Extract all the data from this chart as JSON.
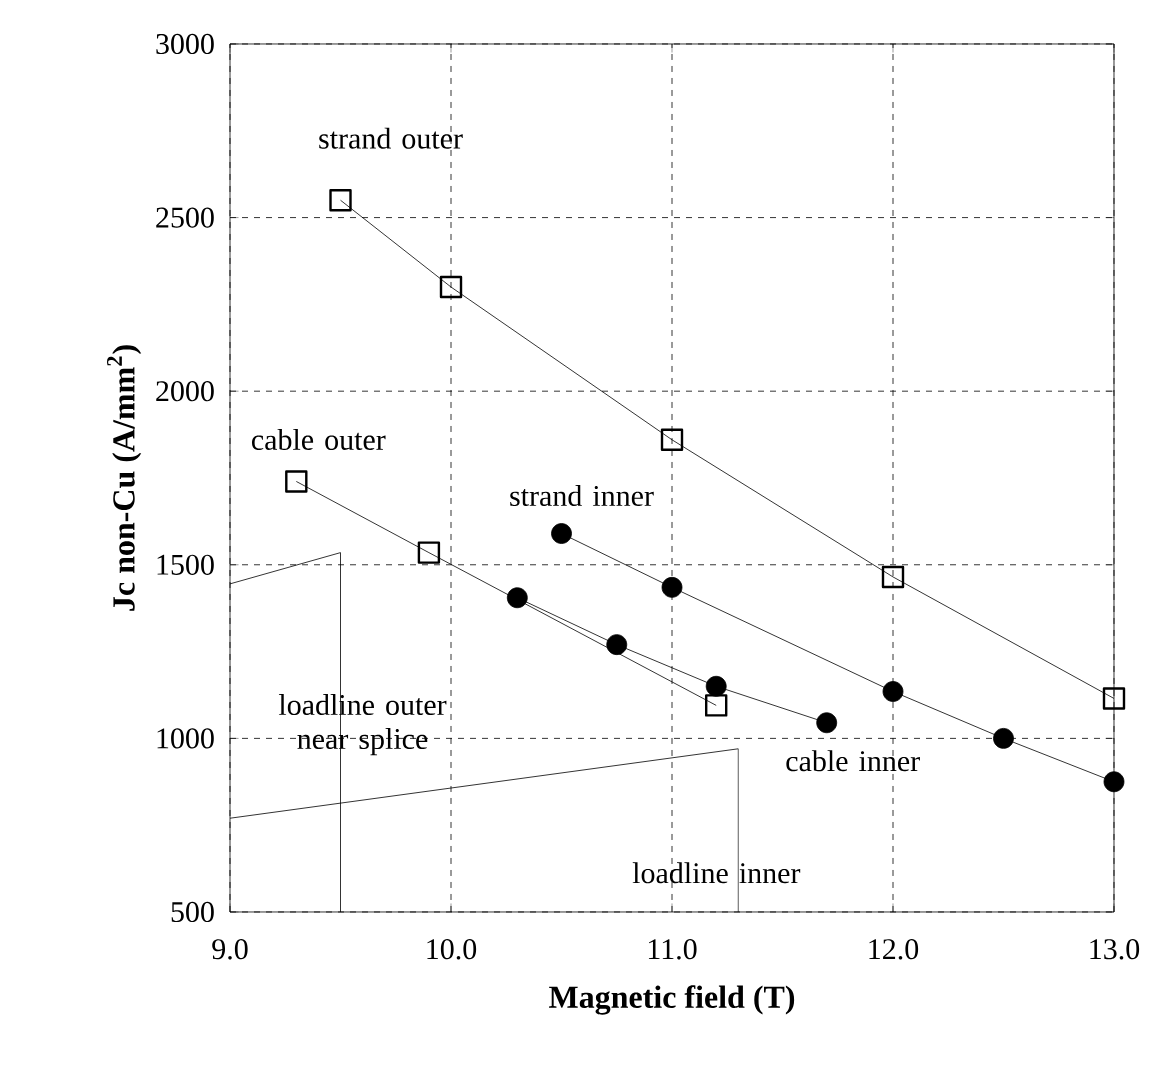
{
  "chart_data": {
    "type": "line",
    "xlabel": "Magnetic field (T)",
    "ylabel": "Jc non-Cu (A/mm$^{2}$)",
    "xlim": [
      9.0,
      13.0
    ],
    "ylim": [
      500,
      3000
    ],
    "xticks": [
      {
        "value": 9,
        "label": "9.0"
      },
      {
        "value": 10,
        "label": "10.0"
      },
      {
        "value": 11,
        "label": "11.0"
      },
      {
        "value": 12,
        "label": "12.0"
      },
      {
        "value": 13,
        "label": "13.0"
      }
    ],
    "yticks": [
      500,
      1000,
      1500,
      2000,
      2500,
      3000
    ],
    "grid": true,
    "series": [
      {
        "name": "strand outer",
        "color": "#000000",
        "marker": "square",
        "x": [
          9.5,
          10,
          11,
          12,
          13
        ],
        "values": [
          2550,
          2300,
          1860,
          1465,
          1115
        ]
      },
      {
        "name": "cable outer",
        "color": "#000000",
        "marker": "square",
        "x": [
          9.3,
          9.9,
          11.2
        ],
        "values": [
          1740,
          1535,
          1095
        ]
      },
      {
        "name": "strand inner",
        "color": "#000000",
        "marker": "circle",
        "x": [
          10.5,
          11,
          12,
          12.5,
          13
        ],
        "values": [
          1590,
          1435,
          1135,
          1000,
          875
        ]
      },
      {
        "name": "cable inner",
        "color": "#000000",
        "marker": "circle",
        "x": [
          10.3,
          10.75,
          11.2,
          11.7
        ],
        "values": [
          1405,
          1270,
          1150,
          1045
        ]
      },
      {
        "name": "loadline outer near splice",
        "color": "#000000",
        "marker": "none",
        "x": [
          9.0,
          9.5,
          9.5
        ],
        "values": [
          1445,
          1535,
          500
        ]
      },
      {
        "name": "loadline inner",
        "color": "#000000",
        "marker": "none",
        "x": [
          9.0,
          11.3,
          11.3
        ],
        "values": [
          770,
          970,
          500
        ]
      }
    ]
  }
}
